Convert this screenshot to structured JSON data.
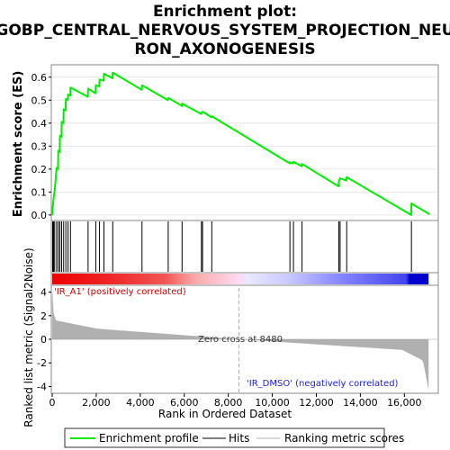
{
  "chart_data": {
    "type": "line",
    "title_lines": [
      "Enrichment plot:",
      "GOBP_CENTRAL_NERVOUS_SYSTEM_PROJECTION_NEU",
      "RON_AXONOGENESIS"
    ],
    "xlabel": "Rank in Ordered Dataset",
    "ylabel_top": "Enrichment score (ES)",
    "ylabel_bottom": "Ranked list metric (Signal2Noise)",
    "xlim": [
      0,
      17500
    ],
    "x_ticks": [
      0,
      2000,
      4000,
      6000,
      8000,
      10000,
      12000,
      14000,
      16000
    ],
    "x_tick_labels": [
      "0",
      "2,000",
      "4,000",
      "6,000",
      "8,000",
      "10,000",
      "12,000",
      "14,000",
      "16,000"
    ],
    "es_ylim": [
      -0.02,
      0.65
    ],
    "es_ticks": [
      0.0,
      0.1,
      0.2,
      0.3,
      0.4,
      0.5,
      0.6
    ],
    "es_tick_labels": [
      "0.0",
      "0.1",
      "0.2",
      "0.3",
      "0.4",
      "0.5",
      "0.6"
    ],
    "metric_ylim": [
      -4.5,
      4.5
    ],
    "metric_ticks": [
      4,
      2,
      0,
      -2,
      -4
    ],
    "metric_tick_labels": [
      "4",
      "2",
      "0",
      "-2",
      "-4"
    ],
    "hits": [
      20,
      60,
      110,
      200,
      280,
      350,
      430,
      520,
      620,
      720,
      830,
      1630,
      1980,
      2150,
      2350,
      2750,
      4080,
      5270,
      5900,
      6780,
      6830,
      7250,
      10800,
      10960,
      11350,
      13020,
      13080,
      13380,
      16320
    ],
    "es_points": [
      [
        0,
        0.0
      ],
      [
        20,
        0.03
      ],
      [
        60,
        0.07
      ],
      [
        110,
        0.105
      ],
      [
        200,
        0.205
      ],
      [
        260,
        0.2
      ],
      [
        280,
        0.28
      ],
      [
        340,
        0.275
      ],
      [
        350,
        0.345
      ],
      [
        420,
        0.34
      ],
      [
        430,
        0.405
      ],
      [
        510,
        0.4
      ],
      [
        520,
        0.46
      ],
      [
        610,
        0.455
      ],
      [
        620,
        0.505
      ],
      [
        710,
        0.5
      ],
      [
        720,
        0.525
      ],
      [
        820,
        0.52
      ],
      [
        830,
        0.555
      ],
      [
        1620,
        0.515
      ],
      [
        1630,
        0.55
      ],
      [
        1970,
        0.53
      ],
      [
        1980,
        0.565
      ],
      [
        2140,
        0.56
      ],
      [
        2150,
        0.59
      ],
      [
        2340,
        0.585
      ],
      [
        2350,
        0.615
      ],
      [
        2740,
        0.595
      ],
      [
        2750,
        0.62
      ],
      [
        4070,
        0.545
      ],
      [
        4080,
        0.565
      ],
      [
        5260,
        0.5
      ],
      [
        5270,
        0.51
      ],
      [
        5890,
        0.475
      ],
      [
        5900,
        0.485
      ],
      [
        6770,
        0.44
      ],
      [
        6780,
        0.445
      ],
      [
        6830,
        0.45
      ],
      [
        7240,
        0.425
      ],
      [
        7250,
        0.43
      ],
      [
        10790,
        0.225
      ],
      [
        10800,
        0.23
      ],
      [
        10950,
        0.225
      ],
      [
        10960,
        0.232
      ],
      [
        11340,
        0.212
      ],
      [
        11350,
        0.222
      ],
      [
        13010,
        0.125
      ],
      [
        13020,
        0.145
      ],
      [
        13080,
        0.16
      ],
      [
        13370,
        0.15
      ],
      [
        13380,
        0.165
      ],
      [
        16310,
        0.0
      ],
      [
        16320,
        0.05
      ],
      [
        17150,
        0.003
      ]
    ],
    "zero_cross": 8480,
    "zero_cross_label": "Zero cross at 8480",
    "pos_label": "'IR_A1' (positively correlated)",
    "neg_label": "'IR_DMSO' (negatively correlated)",
    "legend": [
      "Enrichment profile",
      "Hits",
      "Ranking metric scores"
    ],
    "colors": {
      "es_line": "#00ee00",
      "hits": "#000000",
      "metric_fill": "#b0b0b0",
      "pos_strong": "#ee0000",
      "pos_light": "#ffbbcc",
      "neg_light": "#ccccff",
      "neg_strong": "#0000cc"
    }
  }
}
